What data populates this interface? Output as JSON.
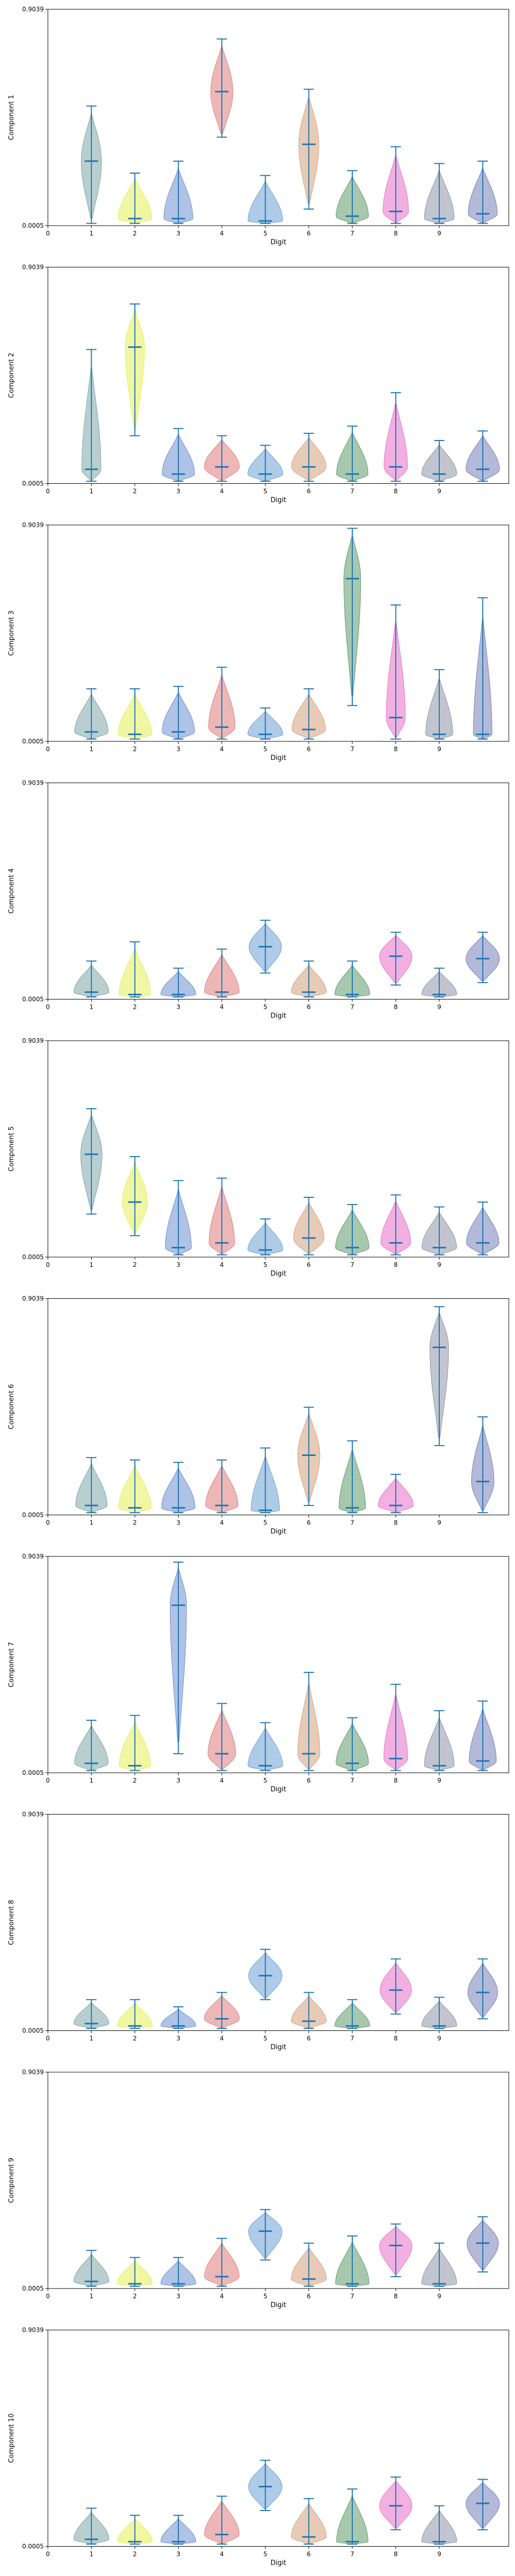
{
  "figure": {
    "xlabel": "Digit",
    "x_ticks": [
      "0",
      "1",
      "2",
      "3",
      "4",
      "5",
      "6",
      "7",
      "8",
      "9"
    ],
    "y_tick_labels": [
      "0.0005",
      "0.9039"
    ],
    "ylim": [
      0.0005,
      0.9039
    ],
    "xlim": [
      0,
      10.6
    ],
    "digit_colors": [
      "#7fa6a6",
      "#e6ee55",
      "#6f8fd0",
      "#e07c7c",
      "#6ba1d6",
      "#d5a07a",
      "#5f9a6a",
      "#e870c8",
      "#8f95a8",
      "#7880b8"
    ],
    "median_color": "#1f77b4",
    "whisker_color": "#1f77b4"
  },
  "chart_data": [
    {
      "type": "violin",
      "ylabel": "Component 1",
      "x": [
        1,
        2,
        3,
        4,
        5,
        6,
        7,
        8,
        9,
        10
      ],
      "max": [
        0.5,
        0.22,
        0.27,
        0.78,
        0.21,
        0.57,
        0.23,
        0.33,
        0.26,
        0.27
      ],
      "median": [
        0.27,
        0.03,
        0.03,
        0.56,
        0.02,
        0.34,
        0.04,
        0.06,
        0.03,
        0.05
      ],
      "min": [
        0.01,
        0.01,
        0.01,
        0.37,
        0.01,
        0.07,
        0.01,
        0.01,
        0.01,
        0.01
      ]
    },
    {
      "type": "violin",
      "ylabel": "Component 2",
      "x": [
        1,
        2,
        3,
        4,
        5,
        6,
        7,
        8,
        9,
        10
      ],
      "max": [
        0.56,
        0.75,
        0.23,
        0.2,
        0.16,
        0.21,
        0.24,
        0.38,
        0.18,
        0.22
      ],
      "median": [
        0.06,
        0.57,
        0.04,
        0.07,
        0.04,
        0.07,
        0.04,
        0.07,
        0.04,
        0.06
      ],
      "min": [
        0.01,
        0.2,
        0.01,
        0.01,
        0.01,
        0.01,
        0.01,
        0.01,
        0.01,
        0.01
      ]
    },
    {
      "type": "violin",
      "ylabel": "Component 3",
      "x": [
        1,
        2,
        3,
        4,
        5,
        6,
        7,
        8,
        9,
        10
      ],
      "max": [
        0.22,
        0.22,
        0.23,
        0.31,
        0.14,
        0.22,
        0.89,
        0.57,
        0.3,
        0.6
      ],
      "median": [
        0.04,
        0.03,
        0.04,
        0.06,
        0.03,
        0.05,
        0.68,
        0.1,
        0.03,
        0.03
      ],
      "min": [
        0.01,
        0.01,
        0.01,
        0.01,
        0.01,
        0.01,
        0.15,
        0.01,
        0.01,
        0.01
      ]
    },
    {
      "type": "violin",
      "ylabel": "Component 4",
      "x": [
        1,
        2,
        3,
        4,
        5,
        6,
        7,
        8,
        9,
        10
      ],
      "max": [
        0.16,
        0.24,
        0.13,
        0.21,
        0.33,
        0.16,
        0.16,
        0.28,
        0.13,
        0.28
      ],
      "median": [
        0.03,
        0.02,
        0.02,
        0.03,
        0.22,
        0.03,
        0.02,
        0.18,
        0.02,
        0.17
      ],
      "min": [
        0.01,
        0.01,
        0.01,
        0.01,
        0.11,
        0.01,
        0.01,
        0.06,
        0.01,
        0.07
      ]
    },
    {
      "type": "violin",
      "ylabel": "Component 5",
      "x": [
        1,
        2,
        3,
        4,
        5,
        6,
        7,
        8,
        9,
        10
      ],
      "max": [
        0.62,
        0.42,
        0.32,
        0.33,
        0.16,
        0.25,
        0.22,
        0.26,
        0.21,
        0.23
      ],
      "median": [
        0.43,
        0.23,
        0.04,
        0.06,
        0.03,
        0.08,
        0.04,
        0.06,
        0.04,
        0.06
      ],
      "min": [
        0.18,
        0.09,
        0.01,
        0.01,
        0.01,
        0.01,
        0.01,
        0.01,
        0.01,
        0.01
      ]
    },
    {
      "type": "violin",
      "ylabel": "Component 6",
      "x": [
        1,
        2,
        3,
        4,
        5,
        6,
        7,
        8,
        9,
        10
      ],
      "max": [
        0.24,
        0.23,
        0.22,
        0.23,
        0.28,
        0.45,
        0.31,
        0.17,
        0.87,
        0.41
      ],
      "median": [
        0.04,
        0.03,
        0.03,
        0.04,
        0.02,
        0.25,
        0.03,
        0.04,
        0.7,
        0.14
      ],
      "min": [
        0.01,
        0.01,
        0.01,
        0.01,
        0.01,
        0.04,
        0.01,
        0.01,
        0.29,
        0.01
      ]
    },
    {
      "type": "violin",
      "ylabel": "Component 7",
      "x": [
        1,
        2,
        3,
        4,
        5,
        6,
        7,
        8,
        9,
        10
      ],
      "max": [
        0.22,
        0.24,
        0.88,
        0.29,
        0.21,
        0.42,
        0.23,
        0.37,
        0.26,
        0.3
      ],
      "median": [
        0.04,
        0.03,
        0.7,
        0.08,
        0.03,
        0.08,
        0.04,
        0.06,
        0.03,
        0.05
      ],
      "min": [
        0.01,
        0.01,
        0.08,
        0.01,
        0.01,
        0.01,
        0.01,
        0.01,
        0.01,
        0.01
      ]
    },
    {
      "type": "violin",
      "ylabel": "Component 8",
      "x": [
        1,
        2,
        3,
        4,
        5,
        6,
        7,
        8,
        9,
        10
      ],
      "max": [
        0.13,
        0.13,
        0.1,
        0.16,
        0.34,
        0.16,
        0.13,
        0.3,
        0.14,
        0.3
      ],
      "median": [
        0.03,
        0.02,
        0.02,
        0.05,
        0.23,
        0.04,
        0.02,
        0.17,
        0.02,
        0.16
      ],
      "min": [
        0.01,
        0.01,
        0.01,
        0.01,
        0.13,
        0.01,
        0.01,
        0.07,
        0.01,
        0.05
      ]
    },
    {
      "type": "violin",
      "ylabel": "Component 9",
      "x": [
        1,
        2,
        3,
        4,
        5,
        6,
        7,
        8,
        9,
        10
      ],
      "max": [
        0.16,
        0.13,
        0.13,
        0.21,
        0.33,
        0.19,
        0.22,
        0.27,
        0.19,
        0.3
      ],
      "median": [
        0.03,
        0.02,
        0.02,
        0.05,
        0.24,
        0.04,
        0.02,
        0.18,
        0.02,
        0.19
      ],
      "min": [
        0.01,
        0.01,
        0.01,
        0.01,
        0.12,
        0.01,
        0.01,
        0.05,
        0.01,
        0.07
      ]
    },
    {
      "type": "violin",
      "ylabel": "Component 10",
      "x": [
        1,
        2,
        3,
        4,
        5,
        6,
        7,
        8,
        9,
        10
      ],
      "max": [
        0.16,
        0.13,
        0.13,
        0.21,
        0.36,
        0.2,
        0.24,
        0.29,
        0.17,
        0.28
      ],
      "median": [
        0.03,
        0.02,
        0.02,
        0.05,
        0.25,
        0.04,
        0.02,
        0.17,
        0.02,
        0.18
      ],
      "min": [
        0.01,
        0.01,
        0.01,
        0.01,
        0.15,
        0.01,
        0.01,
        0.07,
        0.01,
        0.07
      ]
    }
  ]
}
